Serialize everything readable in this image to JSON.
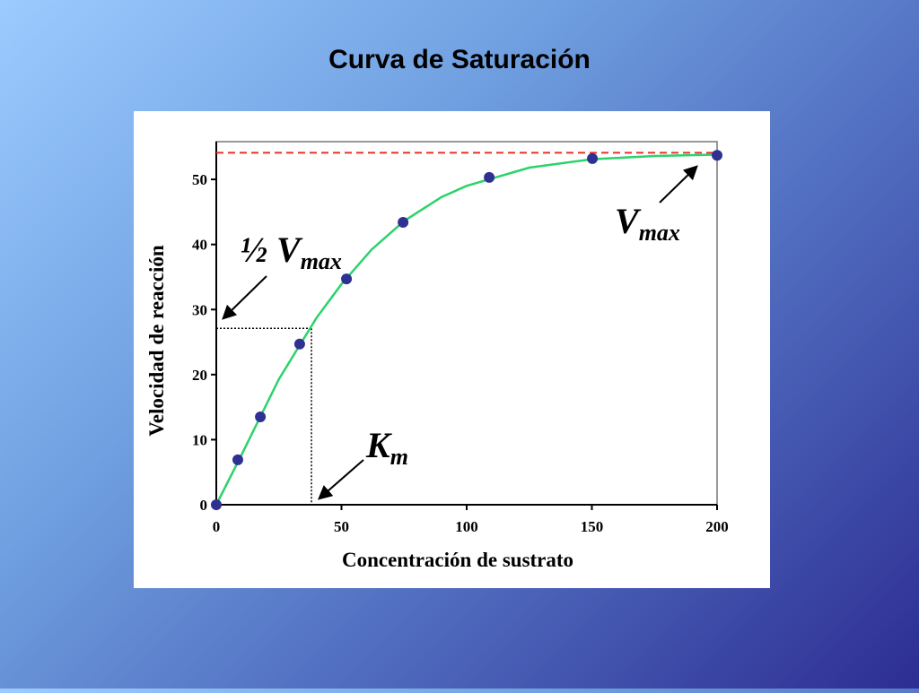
{
  "chart_data": {
    "type": "scatter",
    "title": "Curva de Saturación",
    "x_label": "Concentración de sustrato",
    "y_label": "Velocidad de reacción",
    "xlim": [
      0,
      200
    ],
    "xticks": [
      0,
      50,
      100,
      150,
      200
    ],
    "ylim": [
      0,
      55.8
    ],
    "yticks": [
      0,
      10,
      20,
      30,
      40,
      50
    ],
    "points": {
      "color": "#2e3192",
      "x": [
        0,
        8.6,
        17.6,
        33.3,
        52,
        74.6,
        109,
        150.2,
        200
      ],
      "values": [
        0,
        6.9,
        13.5,
        24.7,
        34.7,
        43.4,
        50.3,
        53.2,
        53.7
      ]
    },
    "curve": {
      "color": "#2bd36b",
      "x": [
        0,
        10,
        25,
        40,
        50,
        62,
        75,
        90,
        100,
        125,
        150,
        175,
        200
      ],
      "values": [
        0,
        7.6,
        19.3,
        28.7,
        33.9,
        39.2,
        43.6,
        47.3,
        49.0,
        51.8,
        53.1,
        53.6,
        53.8
      ]
    },
    "vmax_line": {
      "value": 54.1,
      "color": "#e8322a"
    },
    "km_guide": {
      "x": 38,
      "y": 27.1
    },
    "annotations": {
      "half_vmax": {
        "text": "½ V",
        "sub": "max"
      },
      "km": {
        "text": "K",
        "sub": "m"
      },
      "vmax": {
        "text": "V",
        "sub": "max"
      }
    }
  }
}
